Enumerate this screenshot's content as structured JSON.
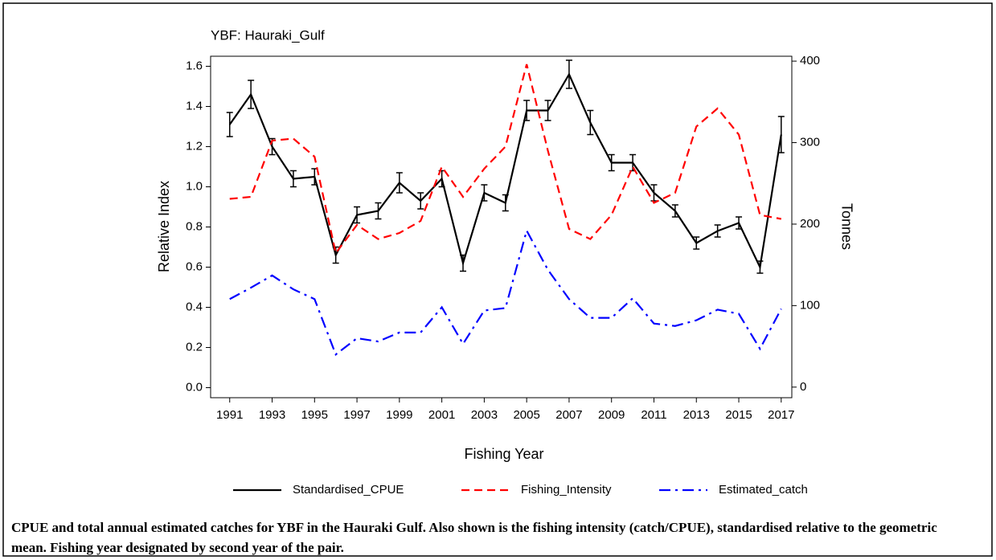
{
  "chart_data": {
    "type": "line",
    "title": "YBF: Hauraki_Gulf",
    "x_label": "Fishing Year",
    "y_label": "Relative Index",
    "y2_label": "Tonnes",
    "x": [
      1991,
      1992,
      1993,
      1994,
      1995,
      1996,
      1997,
      1998,
      1999,
      2000,
      2001,
      2002,
      2003,
      2004,
      2005,
      2006,
      2007,
      2008,
      2009,
      2010,
      2011,
      2012,
      2013,
      2014,
      2015,
      2016,
      2017
    ],
    "series": [
      {
        "name": "Standardised_CPUE",
        "color": "#000000",
        "linestyle": "solid",
        "axis": "y",
        "values": [
          1.31,
          1.46,
          1.2,
          1.04,
          1.05,
          0.66,
          0.86,
          0.88,
          1.02,
          0.93,
          1.04,
          0.62,
          0.97,
          0.92,
          1.38,
          1.38,
          1.56,
          1.32,
          1.12,
          1.12,
          0.97,
          0.88,
          0.72,
          0.78,
          0.82,
          0.6,
          1.26
        ],
        "errors": [
          0.06,
          0.07,
          0.04,
          0.04,
          0.04,
          0.04,
          0.04,
          0.04,
          0.05,
          0.04,
          0.04,
          0.04,
          0.04,
          0.04,
          0.05,
          0.05,
          0.07,
          0.06,
          0.04,
          0.04,
          0.04,
          0.03,
          0.03,
          0.03,
          0.03,
          0.03,
          0.09
        ]
      },
      {
        "name": "Fishing_Intensity",
        "color": "#ff0000",
        "linestyle": "dashed",
        "axis": "y",
        "values": [
          0.94,
          0.95,
          1.23,
          1.24,
          1.15,
          0.67,
          0.81,
          0.74,
          0.77,
          0.83,
          1.1,
          0.95,
          1.09,
          1.2,
          1.61,
          1.18,
          0.79,
          0.74,
          0.86,
          1.1,
          0.92,
          0.97,
          1.3,
          1.39,
          1.26,
          0.86,
          0.84
        ]
      },
      {
        "name": "Estimated_catch",
        "color": "#0000ff",
        "linestyle": "dashdot",
        "axis": "y2",
        "values": [
          108,
          122,
          137,
          120,
          108,
          40,
          60,
          56,
          67,
          67,
          98,
          53,
          94,
          97,
          192,
          144,
          108,
          85,
          85,
          109,
          78,
          75,
          82,
          95,
          90,
          47,
          96
        ]
      }
    ],
    "xlim": [
      1990.1,
      2017.5
    ],
    "xticks": [
      1991,
      1993,
      1995,
      1997,
      1999,
      2001,
      2003,
      2005,
      2007,
      2009,
      2011,
      2013,
      2015,
      2017
    ],
    "ylim": [
      -0.05,
      1.65
    ],
    "yticks": [
      {
        "value": 0,
        "label": "0.0"
      },
      0.2,
      0.4,
      0.6,
      0.8,
      {
        "value": 1,
        "label": "1.0"
      },
      1.2,
      1.4,
      1.6
    ],
    "y2lim": [
      -13,
      406
    ],
    "y2ticks": [
      0,
      100,
      200,
      300,
      400
    ],
    "legend": "bottom",
    "caption": "CPUE and total annual estimated catches for YBF in the Hauraki Gulf. Also shown is the fishing intensity (catch/CPUE), standardised relative to the geometric mean.  Fishing year designated by second year of the pair."
  }
}
